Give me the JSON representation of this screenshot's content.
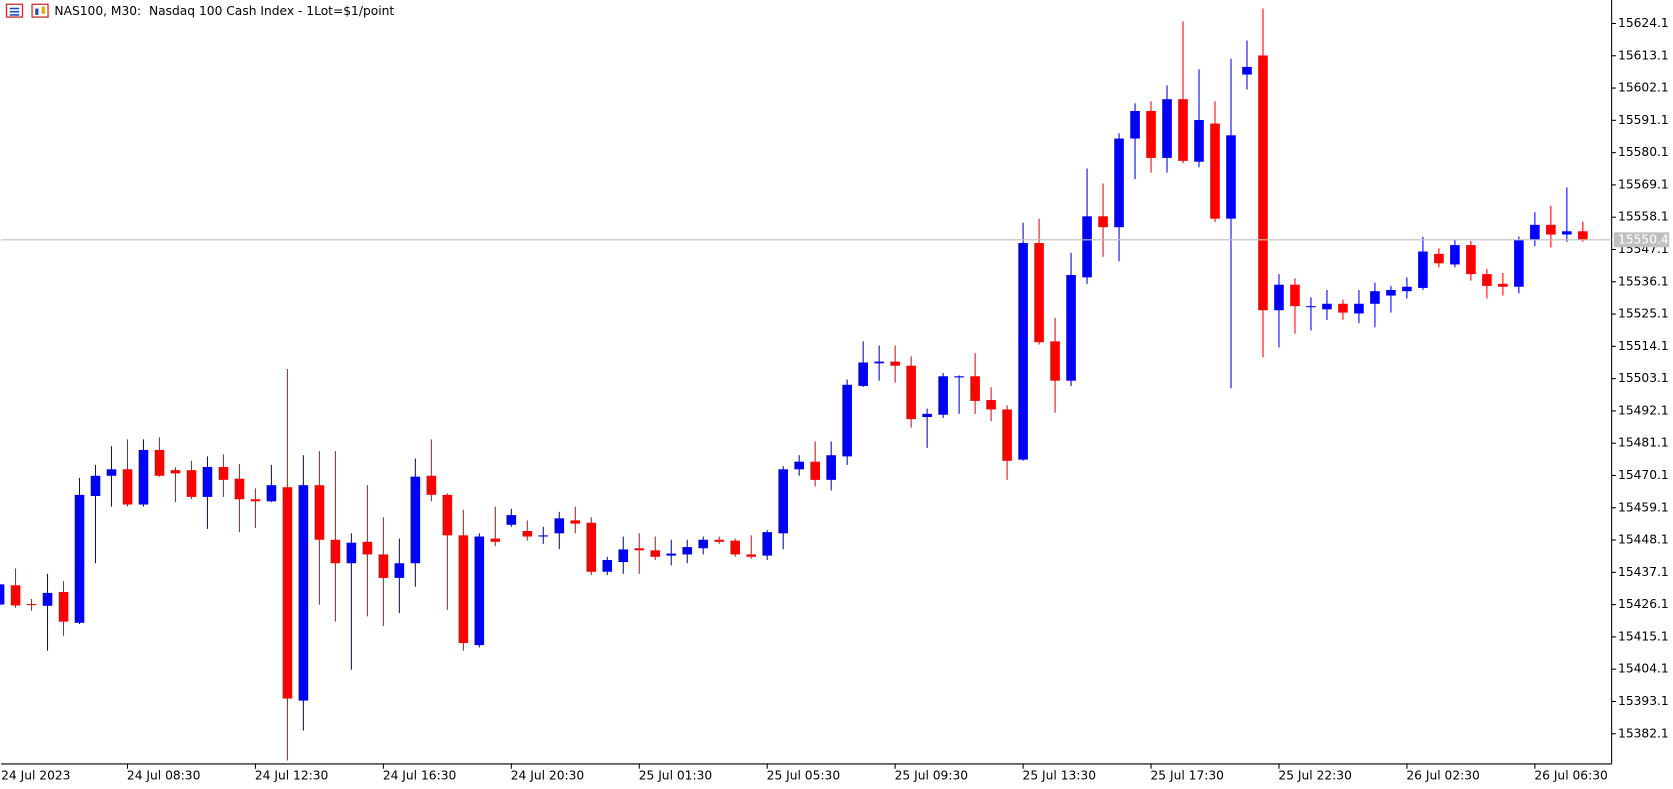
{
  "chart_data": {
    "type": "candlestick",
    "title": "NAS100, M30:  Nasdaq 100 Cash Index - 1Lot=$1/point",
    "up_color": "#0000ff",
    "down_color": "#ff0000",
    "ylim": [
      15372.0,
      15632.1
    ],
    "yticks": [
      15382.1,
      15393.1,
      15404.1,
      15415.1,
      15426.1,
      15437.1,
      15448.1,
      15459.1,
      15470.1,
      15481.1,
      15492.1,
      15503.1,
      15514.1,
      15525.1,
      15536.1,
      15547.1,
      15558.1,
      15569.1,
      15580.1,
      15591.1,
      15602.1,
      15613.1,
      15624.1
    ],
    "current_price": 15550.4,
    "categories": [
      "24 Jul 2023",
      null,
      null,
      null,
      null,
      null,
      null,
      null,
      "24 Jul 08:30",
      null,
      null,
      null,
      null,
      null,
      null,
      null,
      "24 Jul 12:30",
      null,
      null,
      null,
      null,
      null,
      null,
      null,
      "24 Jul 16:30",
      null,
      null,
      null,
      null,
      null,
      null,
      null,
      "24 Jul 20:30",
      null,
      null,
      null,
      null,
      null,
      null,
      null,
      "25 Jul 01:30",
      null,
      null,
      null,
      null,
      null,
      null,
      null,
      "25 Jul 05:30",
      null,
      null,
      null,
      null,
      null,
      null,
      null,
      "25 Jul 09:30",
      null,
      null,
      null,
      null,
      null,
      null,
      null,
      "25 Jul 13:30",
      null,
      null,
      null,
      null,
      null,
      null,
      null,
      "25 Jul 17:30",
      null,
      null,
      null,
      null,
      null,
      null,
      null,
      "25 Jul 22:30",
      null,
      null,
      null,
      null,
      null,
      null,
      null,
      "26 Jul 02:30",
      null,
      null,
      null,
      null,
      null,
      null,
      null,
      "26 Jul 06:30",
      null,
      null,
      null
    ],
    "open": [
      15426.1,
      15432.7,
      15426.3,
      15425.7,
      15430.4,
      15419.9,
      15463.1,
      15470.0,
      15472.2,
      15460.2,
      15478.8,
      15471.9,
      15471.9,
      15462.8,
      15473.0,
      15469.0,
      15462.0,
      15461.3,
      15466.1,
      15393.4,
      15466.8,
      15448.2,
      15440.2,
      15447.5,
      15443.2,
      15435.2,
      15440.2,
      15470.0,
      15463.5,
      15449.7,
      15412.3,
      15448.6,
      15453.3,
      15451.2,
      15449.3,
      15450.4,
      15454.8,
      15454.0,
      15437.3,
      15440.6,
      15445.3,
      15444.6,
      15442.8,
      15443.2,
      15445.3,
      15448.2,
      15447.9,
      15443.2,
      15442.8,
      15450.4,
      15472.2,
      15474.8,
      15468.6,
      15476.6,
      15500.6,
      15508.3,
      15508.9,
      15507.5,
      15490.0,
      15490.8,
      15503.5,
      15503.9,
      15495.8,
      15492.6,
      15475.5,
      15549.3,
      15515.8,
      15502.4,
      15537.6,
      15558.4,
      15554.7,
      15584.9,
      15594.3,
      15578.3,
      15598.3,
      15577.0,
      15590.0,
      15557.6,
      15606.7,
      15613.2,
      15526.4,
      15535.1,
      15527.5,
      15526.7,
      15528.6,
      15525.3,
      15528.6,
      15531.4,
      15532.9,
      15534.0,
      15545.6,
      15542.0,
      15548.6,
      15538.7,
      15535.4,
      15534.4,
      15550.4,
      15555.5,
      15552.2,
      15553.3
    ],
    "high": [
      15433.5,
      15438.4,
      15428.0,
      15436.6,
      15434.1,
      15469.3,
      15473.7,
      15480.1,
      15482.4,
      15482.4,
      15483.1,
      15472.9,
      15475.1,
      15476.6,
      15477.3,
      15474.0,
      15465.7,
      15473.7,
      15506.4,
      15477.0,
      15478.4,
      15478.4,
      15450.4,
      15466.8,
      15455.9,
      15448.6,
      15475.9,
      15482.4,
      15464.0,
      15458.4,
      15450.4,
      15459.5,
      15458.8,
      15454.8,
      15452.6,
      15457.7,
      15459.5,
      15455.9,
      15442.4,
      15449.3,
      15450.4,
      15449.3,
      15448.2,
      15448.2,
      15449.3,
      15449.3,
      15448.6,
      15449.7,
      15451.5,
      15473.3,
      15477.0,
      15481.7,
      15481.7,
      15502.8,
      15515.8,
      15514.4,
      15514.4,
      15510.7,
      15492.9,
      15505.0,
      15504.2,
      15511.8,
      15500.2,
      15494.0,
      15556.2,
      15557.6,
      15523.8,
      15546.0,
      15574.7,
      15569.6,
      15586.7,
      15596.9,
      15597.6,
      15603.0,
      15624.8,
      15608.5,
      15597.6,
      15612.1,
      15618.3,
      15629.2,
      15538.7,
      15537.3,
      15530.8,
      15533.3,
      15530.0,
      15533.3,
      15535.8,
      15534.7,
      15537.6,
      15551.4,
      15547.5,
      15550.4,
      15550.0,
      15540.5,
      15539.1,
      15551.5,
      15559.8,
      15562.0,
      15568.2,
      15556.6
    ],
    "low": [
      15425.0,
      15425.0,
      15424.0,
      15410.4,
      15415.5,
      15419.5,
      15440.2,
      15459.5,
      15459.5,
      15459.5,
      15469.7,
      15461.0,
      15462.0,
      15451.9,
      15462.8,
      15450.8,
      15452.2,
      15461.0,
      15373.0,
      15383.2,
      15426.1,
      15420.3,
      15403.9,
      15422.1,
      15418.8,
      15423.2,
      15432.2,
      15461.3,
      15424.3,
      15410.4,
      15411.5,
      15446.0,
      15452.6,
      15447.9,
      15446.8,
      15445.0,
      15450.4,
      15436.2,
      15436.2,
      15436.6,
      15436.6,
      15441.3,
      15439.5,
      15440.2,
      15443.2,
      15446.8,
      15442.4,
      15441.7,
      15441.3,
      15445.0,
      15470.0,
      15466.4,
      15465.0,
      15473.7,
      15500.2,
      15502.4,
      15501.7,
      15486.4,
      15479.5,
      15489.7,
      15491.1,
      15491.1,
      15488.6,
      15468.6,
      15475.1,
      15514.7,
      15491.5,
      15500.6,
      15535.4,
      15544.6,
      15543.1,
      15571.1,
      15573.3,
      15573.3,
      15576.5,
      15575.1,
      15556.5,
      15499.8,
      15601.6,
      15510.4,
      15513.7,
      15518.4,
      15519.5,
      15523.1,
      15523.1,
      15522.0,
      15520.6,
      15525.6,
      15530.4,
      15533.3,
      15541.0,
      15541.0,
      15536.5,
      15530.4,
      15531.4,
      15532.2,
      15548.2,
      15547.8,
      15549.7,
      15549.7
    ],
    "close": [
      15433.0,
      15425.8,
      15426.0,
      15430.1,
      15420.3,
      15463.5,
      15470.0,
      15472.2,
      15460.2,
      15478.8,
      15470.0,
      15470.8,
      15462.8,
      15473.0,
      15468.6,
      15462.0,
      15461.3,
      15466.8,
      15394.1,
      15466.8,
      15448.2,
      15440.2,
      15447.2,
      15443.2,
      15435.2,
      15440.2,
      15469.7,
      15463.5,
      15449.7,
      15413.0,
      15449.3,
      15447.5,
      15456.6,
      15449.3,
      15449.7,
      15455.5,
      15453.7,
      15437.3,
      15441.3,
      15444.9,
      15444.6,
      15442.4,
      15443.5,
      15445.7,
      15448.2,
      15447.5,
      15443.2,
      15442.4,
      15450.8,
      15472.2,
      15474.8,
      15468.6,
      15477.0,
      15501.0,
      15508.6,
      15508.9,
      15507.5,
      15489.3,
      15491.1,
      15503.9,
      15503.9,
      15495.5,
      15492.6,
      15475.1,
      15549.3,
      15515.5,
      15502.4,
      15538.4,
      15558.4,
      15554.7,
      15584.9,
      15594.3,
      15578.3,
      15598.3,
      15577.3,
      15591.2,
      15557.6,
      15586.0,
      15609.3,
      15526.4,
      15535.1,
      15527.8,
      15527.8,
      15528.6,
      15525.6,
      15528.6,
      15532.9,
      15533.3,
      15534.4,
      15546.4,
      15542.4,
      15548.6,
      15538.7,
      15534.7,
      15534.4,
      15550.4,
      15555.5,
      15552.2,
      15553.3,
      15550.4
    ]
  }
}
